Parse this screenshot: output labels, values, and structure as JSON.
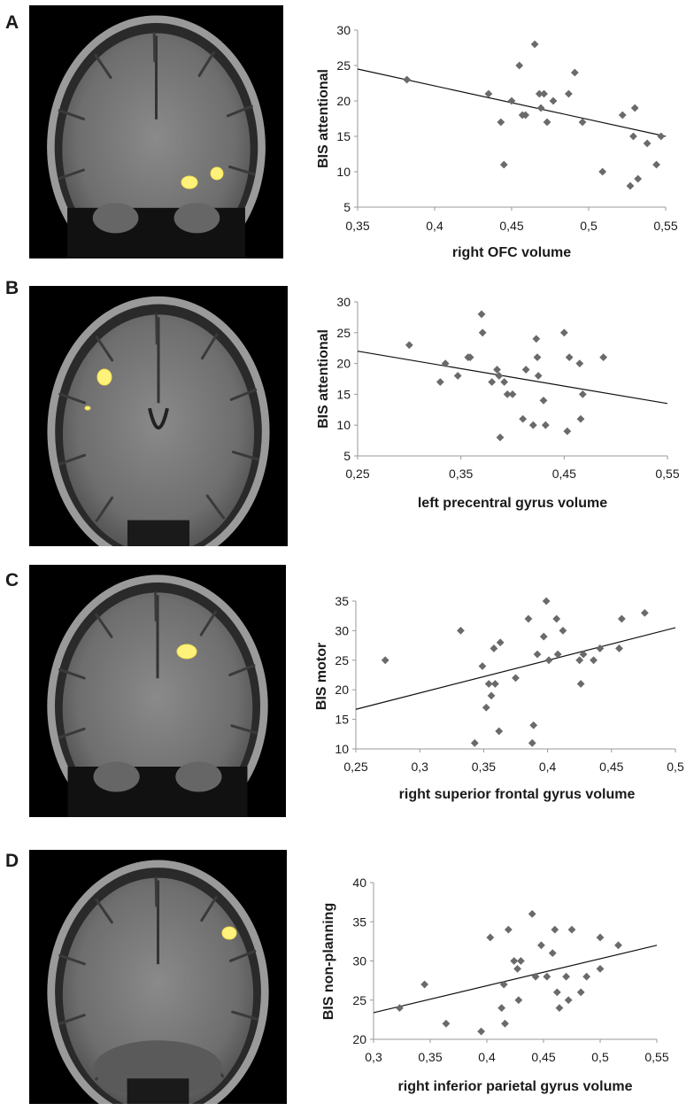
{
  "panels": [
    {
      "letter": "A",
      "slice": "orbitofrontal"
    },
    {
      "letter": "B",
      "slice": "precentral"
    },
    {
      "letter": "C",
      "slice": "superior-frontal"
    },
    {
      "letter": "D",
      "slice": "parietal"
    }
  ],
  "chart_data": [
    {
      "type": "scatter",
      "panel": "A",
      "xlabel": "right OFC volume",
      "ylabel": "BIS attentional",
      "xlim": [
        0.35,
        0.55
      ],
      "ylim": [
        5,
        30
      ],
      "xticks": [
        0.35,
        0.4,
        0.45,
        0.5,
        0.55
      ],
      "xtick_labels": [
        "0,35",
        "0,4",
        "0,45",
        "0,5",
        "0,55"
      ],
      "yticks": [
        5,
        10,
        15,
        20,
        25,
        30
      ],
      "ytick_labels": [
        "5",
        "10",
        "15",
        "20",
        "25",
        "30"
      ],
      "trendline": [
        [
          0.35,
          24.5
        ],
        [
          0.55,
          15.0
        ]
      ],
      "points": [
        [
          0.382,
          23
        ],
        [
          0.435,
          21
        ],
        [
          0.443,
          17
        ],
        [
          0.445,
          11
        ],
        [
          0.45,
          20
        ],
        [
          0.455,
          25
        ],
        [
          0.457,
          18
        ],
        [
          0.459,
          18
        ],
        [
          0.465,
          28
        ],
        [
          0.468,
          21
        ],
        [
          0.469,
          19
        ],
        [
          0.471,
          21
        ],
        [
          0.473,
          17
        ],
        [
          0.477,
          20
        ],
        [
          0.487,
          21
        ],
        [
          0.491,
          24
        ],
        [
          0.496,
          17
        ],
        [
          0.509,
          10
        ],
        [
          0.522,
          18
        ],
        [
          0.527,
          8
        ],
        [
          0.529,
          15
        ],
        [
          0.53,
          19
        ],
        [
          0.532,
          9
        ],
        [
          0.538,
          14
        ],
        [
          0.544,
          11
        ],
        [
          0.547,
          15
        ]
      ],
      "grid": false
    },
    {
      "type": "scatter",
      "panel": "B",
      "xlabel": "left precentral gyrus volume",
      "ylabel": "BIS attentional",
      "xlim": [
        0.25,
        0.55
      ],
      "ylim": [
        5,
        30
      ],
      "xticks": [
        0.25,
        0.35,
        0.45,
        0.55
      ],
      "xtick_labels": [
        "0,25",
        "0,35",
        "0,45",
        "0,55"
      ],
      "yticks": [
        5,
        10,
        15,
        20,
        25,
        30
      ],
      "ytick_labels": [
        "5",
        "10",
        "15",
        "20",
        "25",
        "30"
      ],
      "trendline": [
        [
          0.25,
          22.0
        ],
        [
          0.55,
          13.5
        ]
      ],
      "points": [
        [
          0.3,
          23
        ],
        [
          0.33,
          17
        ],
        [
          0.335,
          20
        ],
        [
          0.347,
          18
        ],
        [
          0.357,
          21
        ],
        [
          0.359,
          21
        ],
        [
          0.37,
          28
        ],
        [
          0.371,
          25
        ],
        [
          0.38,
          17
        ],
        [
          0.385,
          19
        ],
        [
          0.387,
          18
        ],
        [
          0.388,
          8
        ],
        [
          0.392,
          17
        ],
        [
          0.395,
          15
        ],
        [
          0.4,
          15
        ],
        [
          0.41,
          11
        ],
        [
          0.413,
          19
        ],
        [
          0.42,
          10
        ],
        [
          0.423,
          24
        ],
        [
          0.424,
          21
        ],
        [
          0.425,
          18
        ],
        [
          0.43,
          14
        ],
        [
          0.432,
          10
        ],
        [
          0.45,
          25
        ],
        [
          0.453,
          9
        ],
        [
          0.455,
          21
        ],
        [
          0.465,
          20
        ],
        [
          0.466,
          11
        ],
        [
          0.468,
          15
        ],
        [
          0.488,
          21
        ]
      ],
      "grid": false
    },
    {
      "type": "scatter",
      "panel": "C",
      "xlabel": "right superior frontal gyrus volume",
      "ylabel": "BIS motor",
      "xlim": [
        0.25,
        0.5
      ],
      "ylim": [
        10,
        35
      ],
      "xticks": [
        0.25,
        0.3,
        0.35,
        0.4,
        0.45,
        0.5
      ],
      "xtick_labels": [
        "0,25",
        "0,3",
        "0,35",
        "0,4",
        "0,45",
        "0,5"
      ],
      "yticks": [
        10,
        15,
        20,
        25,
        30,
        35
      ],
      "ytick_labels": [
        "10",
        "15",
        "20",
        "25",
        "30",
        "35"
      ],
      "trendline": [
        [
          0.25,
          16.7
        ],
        [
          0.5,
          30.5
        ]
      ],
      "points": [
        [
          0.273,
          25
        ],
        [
          0.332,
          30
        ],
        [
          0.343,
          11
        ],
        [
          0.349,
          24
        ],
        [
          0.352,
          17
        ],
        [
          0.354,
          21
        ],
        [
          0.356,
          19
        ],
        [
          0.358,
          27
        ],
        [
          0.359,
          21
        ],
        [
          0.362,
          13
        ],
        [
          0.363,
          28
        ],
        [
          0.375,
          22
        ],
        [
          0.385,
          32
        ],
        [
          0.388,
          11
        ],
        [
          0.389,
          14
        ],
        [
          0.392,
          26
        ],
        [
          0.397,
          29
        ],
        [
          0.399,
          35
        ],
        [
          0.401,
          25
        ],
        [
          0.407,
          32
        ],
        [
          0.408,
          26
        ],
        [
          0.412,
          30
        ],
        [
          0.425,
          25
        ],
        [
          0.426,
          21
        ],
        [
          0.428,
          26
        ],
        [
          0.436,
          25
        ],
        [
          0.441,
          27
        ],
        [
          0.456,
          27
        ],
        [
          0.458,
          32
        ],
        [
          0.476,
          33
        ]
      ],
      "grid": false
    },
    {
      "type": "scatter",
      "panel": "D",
      "xlabel": "right inferior parietal gyrus volume",
      "ylabel": "BIS non-planning",
      "xlim": [
        0.3,
        0.55
      ],
      "ylim": [
        20,
        40
      ],
      "xticks": [
        0.3,
        0.35,
        0.4,
        0.45,
        0.5,
        0.55
      ],
      "xtick_labels": [
        "0,3",
        "0,35",
        "0,4",
        "0,45",
        "0,5",
        "0,55"
      ],
      "yticks": [
        20,
        25,
        30,
        35,
        40
      ],
      "ytick_labels": [
        "20",
        "25",
        "30",
        "35",
        "40"
      ],
      "trendline": [
        [
          0.3,
          23.4
        ],
        [
          0.55,
          32.0
        ]
      ],
      "points": [
        [
          0.323,
          24
        ],
        [
          0.345,
          27
        ],
        [
          0.364,
          22
        ],
        [
          0.395,
          21
        ],
        [
          0.403,
          33
        ],
        [
          0.413,
          24
        ],
        [
          0.415,
          27
        ],
        [
          0.416,
          22
        ],
        [
          0.419,
          34
        ],
        [
          0.424,
          30
        ],
        [
          0.427,
          29
        ],
        [
          0.428,
          25
        ],
        [
          0.43,
          30
        ],
        [
          0.44,
          36
        ],
        [
          0.443,
          28
        ],
        [
          0.448,
          32
        ],
        [
          0.453,
          28
        ],
        [
          0.458,
          31
        ],
        [
          0.46,
          34
        ],
        [
          0.462,
          26
        ],
        [
          0.464,
          24
        ],
        [
          0.47,
          28
        ],
        [
          0.472,
          25
        ],
        [
          0.475,
          34
        ],
        [
          0.483,
          26
        ],
        [
          0.488,
          28
        ],
        [
          0.5,
          33
        ],
        [
          0.5,
          29
        ],
        [
          0.516,
          32
        ]
      ],
      "grid": false
    }
  ]
}
